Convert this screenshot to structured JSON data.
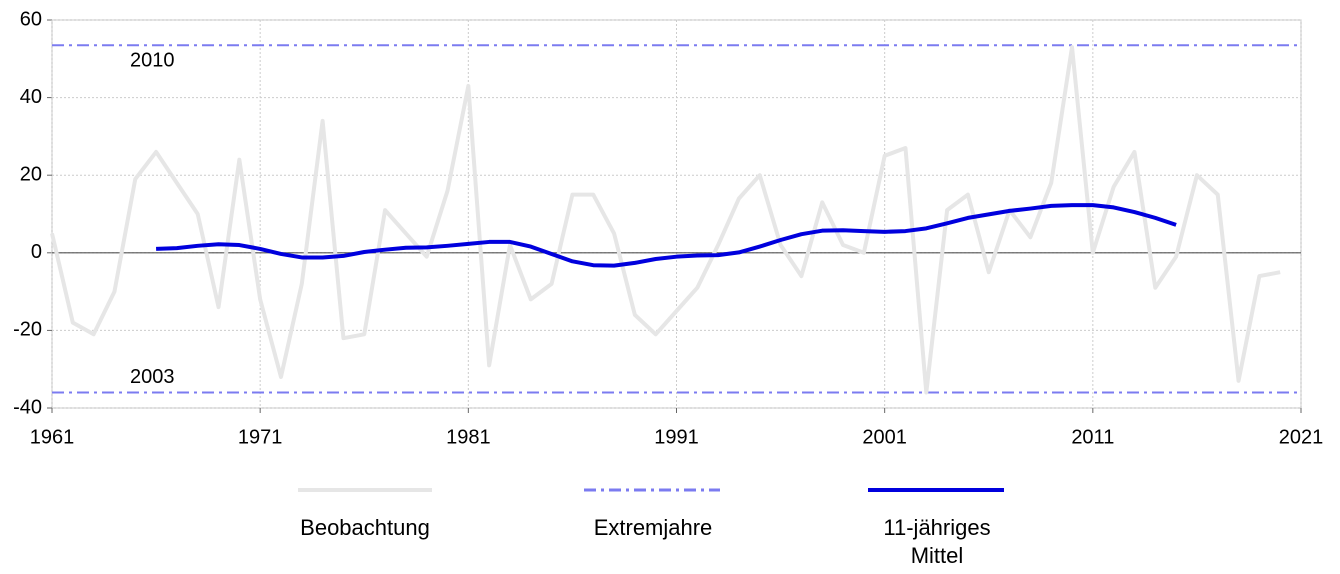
{
  "chart_data": {
    "type": "line",
    "x": [
      1961,
      1962,
      1963,
      1964,
      1965,
      1966,
      1967,
      1968,
      1969,
      1970,
      1971,
      1972,
      1973,
      1974,
      1975,
      1976,
      1977,
      1978,
      1979,
      1980,
      1981,
      1982,
      1983,
      1984,
      1985,
      1986,
      1987,
      1988,
      1989,
      1990,
      1991,
      1992,
      1993,
      1994,
      1995,
      1996,
      1997,
      1998,
      1999,
      2000,
      2001,
      2002,
      2003,
      2004,
      2005,
      2006,
      2007,
      2008,
      2009,
      2010,
      2011,
      2012,
      2013,
      2014,
      2015,
      2016,
      2017,
      2018,
      2019,
      2020
    ],
    "series": [
      {
        "name": "Beobachtung",
        "color": "#e6e6e6",
        "values": [
          5,
          -18,
          -21,
          -10,
          19,
          26,
          18,
          10,
          -14,
          24,
          -12,
          -32,
          -8,
          34,
          -22,
          -21,
          11,
          5,
          -1,
          16,
          43,
          -29,
          2,
          -12,
          -8,
          15,
          15,
          5,
          -16,
          -21,
          -15,
          -9,
          2,
          14,
          20,
          2,
          -6,
          13,
          2,
          0,
          25,
          27,
          -36,
          11,
          15,
          -5,
          11,
          4,
          18,
          53,
          0,
          17,
          26,
          -9,
          -1,
          20,
          15,
          -33,
          -6,
          -5
        ]
      },
      {
        "name": "11-jähriges Mittel",
        "color": "#0000dd",
        "values": [
          null,
          null,
          null,
          null,
          null,
          1,
          1.2,
          1.8,
          2.2,
          2,
          1,
          -0.3,
          -1.2,
          -1.2,
          -0.8,
          0.2,
          0.8,
          1.3,
          1.4,
          1.8,
          2.3,
          2.8,
          2.8,
          1.6,
          -0.3,
          -2.2,
          -3.2,
          -3.3,
          -2.6,
          -1.6,
          -1,
          -0.7,
          -0.6,
          0.1,
          1.6,
          3.3,
          4.8,
          5.7,
          5.8,
          5.6,
          5.4,
          5.6,
          6.3,
          7.6,
          9,
          9.9,
          10.8,
          11.4,
          12.1,
          12.3,
          12.3,
          11.7,
          10.5,
          9,
          7.2,
          null,
          null,
          null,
          null,
          null
        ]
      }
    ],
    "extremes": {
      "name": "Extremjahre",
      "color": "#7b7bf0",
      "lines": [
        {
          "label": "2010",
          "value": 53.5
        },
        {
          "label": "2003",
          "value": -36
        }
      ]
    },
    "xlim": [
      1961,
      2021
    ],
    "xticks": [
      1961,
      1971,
      1981,
      1991,
      2001,
      2011,
      2021
    ],
    "ylim": [
      -40,
      60
    ],
    "yticks": [
      -40,
      -20,
      0,
      20,
      40,
      60
    ],
    "grid": true
  }
}
